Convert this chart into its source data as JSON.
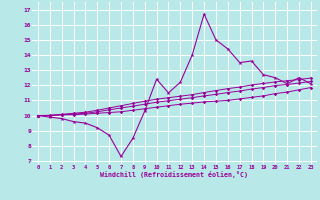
{
  "xlabel": "Windchill (Refroidissement éolien,°C)",
  "bg_color": "#b8e8e8",
  "grid_color": "#ffffff",
  "line_color": "#990099",
  "xlim": [
    -0.5,
    23.5
  ],
  "ylim": [
    6.8,
    17.5
  ],
  "xticks": [
    0,
    1,
    2,
    3,
    4,
    5,
    6,
    7,
    8,
    9,
    10,
    11,
    12,
    13,
    14,
    15,
    16,
    17,
    18,
    19,
    20,
    21,
    22,
    23
  ],
  "yticks": [
    7,
    8,
    9,
    10,
    11,
    12,
    13,
    14,
    15,
    16,
    17
  ],
  "main_x": [
    0,
    1,
    2,
    3,
    4,
    5,
    6,
    7,
    8,
    9,
    10,
    11,
    12,
    13,
    14,
    15,
    16,
    17,
    18,
    19,
    20,
    21,
    22,
    23
  ],
  "main_y": [
    10.0,
    9.9,
    9.8,
    9.6,
    9.5,
    9.2,
    8.7,
    7.3,
    8.5,
    10.3,
    12.4,
    11.5,
    12.2,
    14.0,
    16.7,
    15.0,
    14.4,
    13.5,
    13.6,
    12.7,
    12.5,
    12.1,
    12.5,
    12.1
  ],
  "line2_x": [
    0,
    23
  ],
  "line2_y": [
    10.0,
    12.0
  ],
  "line3_x": [
    0,
    23
  ],
  "line3_y": [
    10.0,
    12.2
  ],
  "line4_x": [
    0,
    23
  ],
  "line4_y": [
    10.0,
    12.5
  ],
  "line2_full_x": [
    0,
    1,
    2,
    3,
    4,
    5,
    6,
    7,
    8,
    9,
    10,
    11,
    12,
    13,
    14,
    15,
    16,
    17,
    18,
    19,
    20,
    21,
    22,
    23
  ],
  "line2_full_y": [
    10.0,
    10.0,
    10.05,
    10.05,
    10.1,
    10.15,
    10.2,
    10.25,
    10.35,
    10.45,
    10.55,
    10.65,
    10.75,
    10.82,
    10.9,
    10.95,
    11.0,
    11.1,
    11.2,
    11.3,
    11.45,
    11.55,
    11.7,
    11.85
  ],
  "line3_full_x": [
    0,
    1,
    2,
    3,
    4,
    5,
    6,
    7,
    8,
    9,
    10,
    11,
    12,
    13,
    14,
    15,
    16,
    17,
    18,
    19,
    20,
    21,
    22,
    23
  ],
  "line3_full_y": [
    10.0,
    10.0,
    10.05,
    10.1,
    10.15,
    10.25,
    10.38,
    10.5,
    10.62,
    10.75,
    10.88,
    10.98,
    11.08,
    11.18,
    11.3,
    11.4,
    11.52,
    11.62,
    11.75,
    11.85,
    11.98,
    12.05,
    12.15,
    12.25
  ],
  "line4_full_x": [
    0,
    1,
    2,
    3,
    4,
    5,
    6,
    7,
    8,
    9,
    10,
    11,
    12,
    13,
    14,
    15,
    16,
    17,
    18,
    19,
    20,
    21,
    22,
    23
  ],
  "line4_full_y": [
    10.0,
    10.02,
    10.08,
    10.15,
    10.22,
    10.35,
    10.5,
    10.65,
    10.8,
    10.95,
    11.08,
    11.18,
    11.28,
    11.38,
    11.52,
    11.65,
    11.78,
    11.88,
    12.02,
    12.12,
    12.22,
    12.3,
    12.38,
    12.48
  ]
}
